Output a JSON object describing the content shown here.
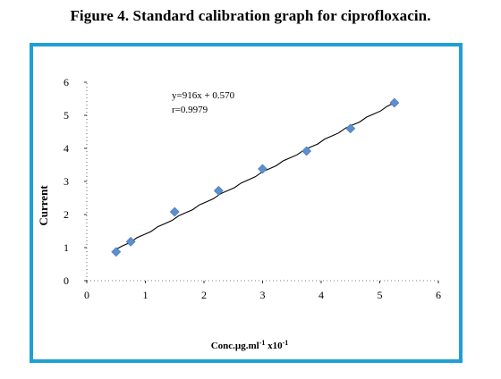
{
  "figure_title": "Figure 4. Standard calibration graph for ciprofloxacin.",
  "colors": {
    "frame": "#1ea0d6",
    "marker": "#5b8fd0",
    "line": "#000000"
  },
  "chart_data": {
    "type": "scatter",
    "title": "",
    "xlabel": "Conc.µg.ml-1 x10-1",
    "ylabel": "Current",
    "xlim": [
      0,
      6
    ],
    "ylim": [
      0,
      6
    ],
    "x_ticks": [
      "0",
      "1",
      "2",
      "3",
      "4",
      "5",
      "6"
    ],
    "y_ticks": [
      "0",
      "1",
      "2",
      "3",
      "4",
      "5",
      "6"
    ],
    "grid": false,
    "legend": "none",
    "series": [
      {
        "x": [
          0.5,
          0.75,
          1.5,
          2.25,
          3.0,
          3.75,
          4.5,
          5.25
        ],
        "y": [
          0.87,
          1.18,
          2.08,
          2.72,
          3.38,
          3.92,
          4.6,
          5.38
        ],
        "marker": "diamond"
      }
    ],
    "trendline": {
      "x": [
        0.5,
        5.25
      ],
      "y": [
        0.95,
        5.37
      ]
    },
    "annotations": [
      "y=916x + 0.570",
      "r=0.9979"
    ]
  }
}
